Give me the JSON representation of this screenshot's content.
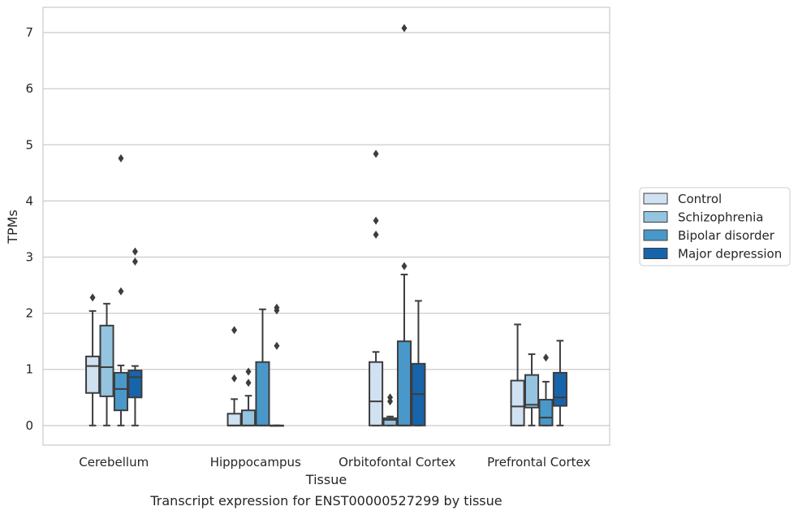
{
  "chart_data": {
    "type": "box",
    "title": "",
    "caption": "Transcript expression for ENST00000527299 by tissue",
    "xlabel": "Tissue",
    "ylabel": "TPMs",
    "ylim": [
      -0.35,
      7.45
    ],
    "yticks": [
      0,
      1,
      2,
      3,
      4,
      5,
      6,
      7
    ],
    "grid": true,
    "legend_position": "right",
    "categories": [
      "Cerebellum",
      "Hipppocampus",
      "Orbitofontal Cortex",
      "Prefrontal Cortex"
    ],
    "series": [
      {
        "name": "Control",
        "color": "#d0e1f2",
        "boxes": [
          {
            "whisker_low": 0,
            "q1": 0.58,
            "median": 1.06,
            "q3": 1.23,
            "whisker_high": 2.04,
            "outliers": [
              2.28
            ]
          },
          {
            "whisker_low": 0,
            "q1": 0,
            "median": 0,
            "q3": 0.21,
            "whisker_high": 0.47,
            "outliers": [
              0.84,
              1.7
            ]
          },
          {
            "whisker_low": 0,
            "q1": 0,
            "median": 0.43,
            "q3": 1.13,
            "whisker_high": 1.31,
            "outliers": [
              3.4,
              3.65,
              4.84
            ]
          },
          {
            "whisker_low": 0,
            "q1": 0,
            "median": 0.34,
            "q3": 0.8,
            "whisker_high": 1.8,
            "outliers": []
          }
        ]
      },
      {
        "name": "Schizophrenia",
        "color": "#94c4df",
        "boxes": [
          {
            "whisker_low": 0,
            "q1": 0.52,
            "median": 1.04,
            "q3": 1.78,
            "whisker_high": 2.17,
            "outliers": []
          },
          {
            "whisker_low": 0,
            "q1": 0,
            "median": 0,
            "q3": 0.27,
            "whisker_high": 0.53,
            "outliers": [
              0.76,
              0.96
            ]
          },
          {
            "whisker_low": 0,
            "q1": 0,
            "median": 0.1,
            "q3": 0.13,
            "whisker_high": 0.16,
            "outliers": [
              0.43,
              0.5
            ]
          },
          {
            "whisker_low": 0,
            "q1": 0.32,
            "median": 0.37,
            "q3": 0.9,
            "whisker_high": 1.27,
            "outliers": []
          }
        ]
      },
      {
        "name": "Bipolar disorder",
        "color": "#4a98c9",
        "boxes": [
          {
            "whisker_low": 0,
            "q1": 0.27,
            "median": 0.65,
            "q3": 0.94,
            "whisker_high": 1.07,
            "outliers": [
              2.39,
              4.76
            ]
          },
          {
            "whisker_low": 0,
            "q1": 0,
            "median": 0,
            "q3": 1.13,
            "whisker_high": 2.07,
            "outliers": []
          },
          {
            "whisker_low": 0,
            "q1": 0,
            "median": 0,
            "q3": 1.5,
            "whisker_high": 2.69,
            "outliers": [
              2.84,
              7.08
            ]
          },
          {
            "whisker_low": 0,
            "q1": 0,
            "median": 0.14,
            "q3": 0.46,
            "whisker_high": 0.78,
            "outliers": [
              1.21
            ]
          }
        ]
      },
      {
        "name": "Major depression",
        "color": "#1764ab",
        "boxes": [
          {
            "whisker_low": 0,
            "q1": 0.5,
            "median": 0.86,
            "q3": 0.98,
            "whisker_high": 1.06,
            "outliers": [
              2.92,
              3.1
            ]
          },
          {
            "whisker_low": 0,
            "q1": 0,
            "median": 0,
            "q3": 0,
            "whisker_high": 0,
            "outliers": [
              1.42,
              2.05,
              2.1
            ]
          },
          {
            "whisker_low": 0,
            "q1": 0,
            "median": 0.56,
            "q3": 1.1,
            "whisker_high": 2.22,
            "outliers": []
          },
          {
            "whisker_low": 0,
            "q1": 0.35,
            "median": 0.5,
            "q3": 0.94,
            "whisker_high": 1.51,
            "outliers": []
          }
        ]
      }
    ]
  }
}
